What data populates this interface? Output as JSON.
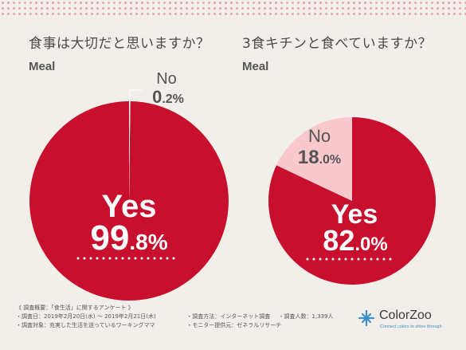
{
  "colors": {
    "yes": "#c8102e",
    "no_left": "#ffffff",
    "no_right": "#f8c8cc",
    "text_gray": "#555555"
  },
  "left": {
    "question": "食事は大切だと思いますか？",
    "subtitle": "Meal"
  },
  "right": {
    "question": "3食キチンと食べていますか？",
    "subtitle": "Meal"
  },
  "chart_data": [
    {
      "type": "pie",
      "title": "食事は大切だと思いますか？",
      "subtitle": "Meal",
      "slices": [
        {
          "label": "Yes",
          "value": 99.8,
          "int": "99",
          "dec": ".8%"
        },
        {
          "label": "No",
          "value": 0.2,
          "int": "0",
          "dec": ".2%"
        }
      ]
    },
    {
      "type": "pie",
      "title": "3食キチンと食べていますか？",
      "subtitle": "Meal",
      "slices": [
        {
          "label": "Yes",
          "value": 82.0,
          "int": "82",
          "dec": ".0%"
        },
        {
          "label": "No",
          "value": 18.0,
          "int": "18",
          "dec": ".0%"
        }
      ]
    }
  ],
  "survey": {
    "heading": "《 調査概要：「食生活」に関するアンケート 》",
    "period": "・調査日：2019年2月20日(水) 〜 2019年2月21日(木)",
    "method": "・調査方法：インターネット調査",
    "count": "・調査人数：1,339人",
    "target": "・調査対象：充実した生活を送っているワーキングママ",
    "provider": "・モニター提供元：ゼネラルリサーチ"
  },
  "logo": {
    "brand": "ColorZoo",
    "tagline": "Connect colors to shine through",
    "icon": "colorzoo-logo-icon"
  }
}
